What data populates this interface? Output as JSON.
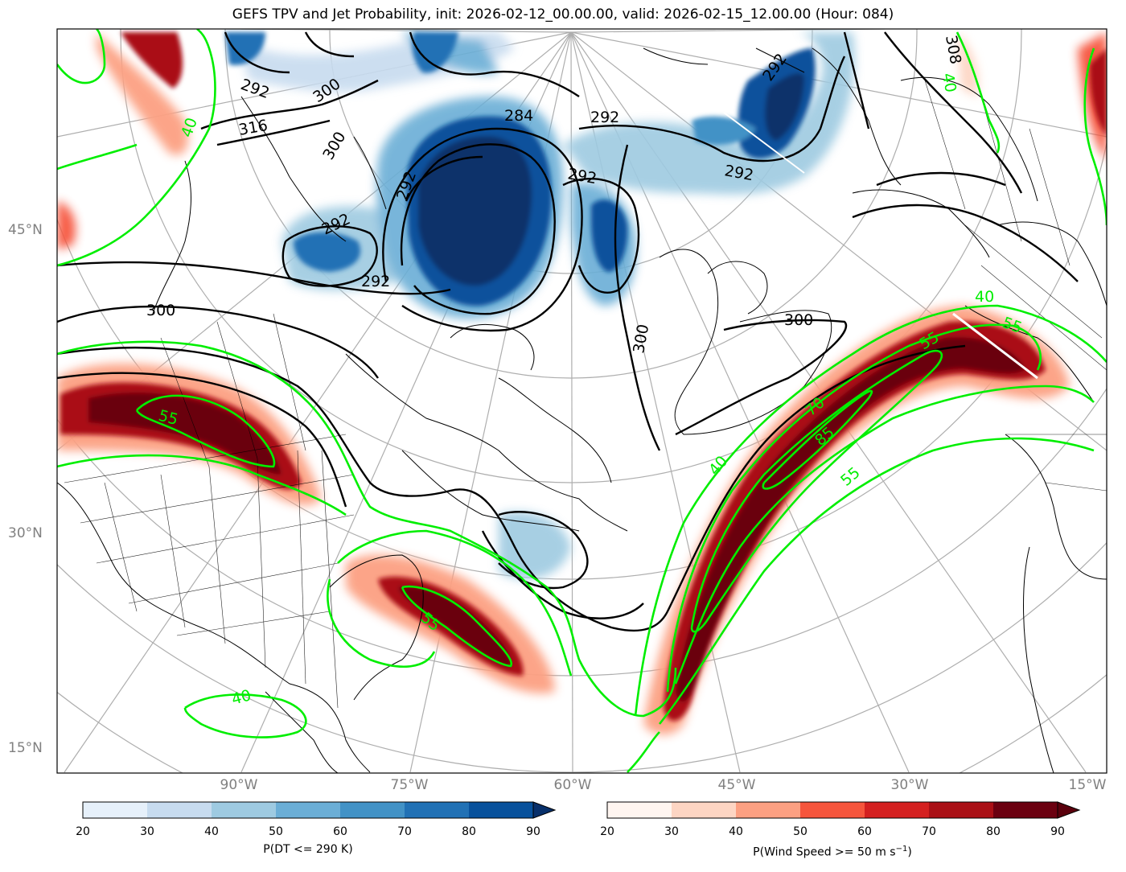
{
  "title": "GEFS TPV and Jet Probability, init: 2026-02-12_00.00.00, valid: 2026-02-15_12.00.00 (Hour: 084)",
  "lat_labels": [
    "45°N",
    "30°N",
    "15°N"
  ],
  "lon_labels": [
    "90°W",
    "75°W",
    "60°W",
    "45°W",
    "30°W",
    "15°W"
  ],
  "dt_contour_labels": [
    "292",
    "292",
    "292",
    "292",
    "292",
    "284",
    "292",
    "300",
    "300",
    "300",
    "300",
    "308",
    "316",
    "300",
    "292",
    "292"
  ],
  "jet_contour_labels": [
    "40",
    "40",
    "40",
    "40",
    "55",
    "55",
    "55",
    "55",
    "70",
    "85",
    "40",
    "55"
  ],
  "colorbars": {
    "dt": {
      "title": "P(DT <= 290 K)",
      "ticks": [
        "20",
        "30",
        "40",
        "50",
        "60",
        "70",
        "80",
        "90"
      ],
      "colors": [
        "#e6f0fa",
        "#c7dbef",
        "#9ecae1",
        "#6baed6",
        "#4292c6",
        "#2171b5",
        "#08519c"
      ],
      "extend_color": "#08306b"
    },
    "wind": {
      "title": "P(Wind Speed >= 50 m s",
      "title_sup": "−1",
      "title_tail": ")",
      "ticks": [
        "20",
        "30",
        "40",
        "50",
        "60",
        "70",
        "80",
        "90"
      ],
      "colors": [
        "#fff5f0",
        "#fdd5c3",
        "#fca082",
        "#f6553c",
        "#d42020",
        "#aa1016",
        "#6b0010"
      ],
      "extend_color": "#5a000c"
    }
  }
}
